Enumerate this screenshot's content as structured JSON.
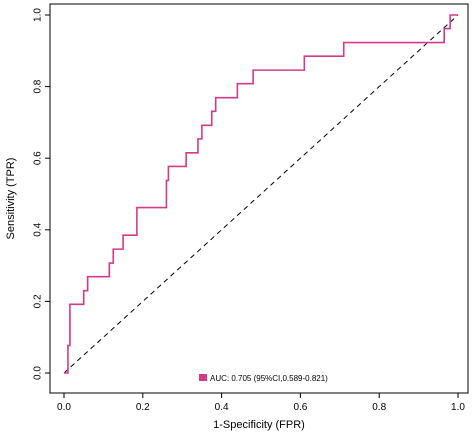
{
  "chart_data": {
    "type": "line",
    "xlabel": "1-Specificity (FPR)",
    "ylabel": "Sensitivity (TPR)",
    "xlim": [
      0.0,
      1.0
    ],
    "ylim": [
      0.0,
      1.0
    ],
    "xticks": [
      "0.0",
      "0.2",
      "0.4",
      "0.6",
      "0.8",
      "1.0"
    ],
    "yticks": [
      "0.0",
      "0.2",
      "0.4",
      "0.6",
      "0.8",
      "1.0"
    ],
    "grid": false,
    "legend_position": "bottom",
    "colors": {
      "roc": "#d63a87",
      "diagonal": "#000000",
      "axis": "#000000"
    },
    "series": [
      {
        "name": "AUC: 0.705 (95%CI,0.589-0.821)",
        "x": [
          0.0,
          0.01,
          0.01,
          0.015,
          0.015,
          0.05,
          0.05,
          0.06,
          0.06,
          0.115,
          0.115,
          0.125,
          0.125,
          0.15,
          0.15,
          0.185,
          0.185,
          0.26,
          0.26,
          0.265,
          0.265,
          0.27,
          0.27,
          0.31,
          0.31,
          0.34,
          0.34,
          0.35,
          0.35,
          0.375,
          0.375,
          0.385,
          0.385,
          0.44,
          0.44,
          0.48,
          0.48,
          0.61,
          0.61,
          0.71,
          0.71,
          0.965,
          0.965,
          0.98,
          0.98,
          1.0
        ],
        "y": [
          0.0,
          0.0,
          0.077,
          0.077,
          0.192,
          0.192,
          0.23,
          0.23,
          0.269,
          0.269,
          0.307,
          0.307,
          0.346,
          0.346,
          0.385,
          0.385,
          0.462,
          0.462,
          0.538,
          0.538,
          0.577,
          0.577,
          0.577,
          0.577,
          0.615,
          0.615,
          0.654,
          0.654,
          0.692,
          0.692,
          0.731,
          0.731,
          0.769,
          0.769,
          0.808,
          0.808,
          0.846,
          0.846,
          0.885,
          0.885,
          0.923,
          0.923,
          0.962,
          0.962,
          1.0,
          1.0
        ]
      },
      {
        "name": "",
        "x": [
          0.0,
          1.0
        ],
        "y": [
          0.0,
          1.0
        ]
      }
    ]
  }
}
